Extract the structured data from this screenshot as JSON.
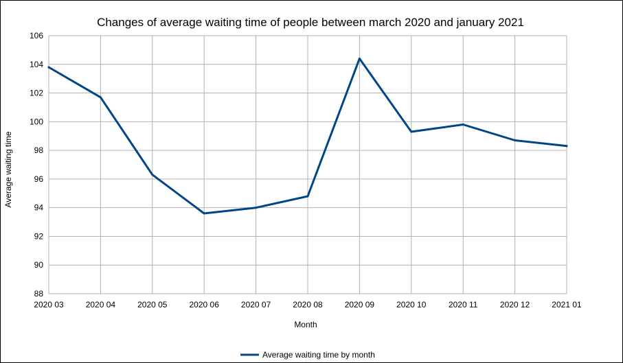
{
  "chart_data": {
    "type": "line",
    "title": "Changes of average waiting time of people between march 2020 and january 2021",
    "xlabel": "Month",
    "ylabel": "Average waiting time",
    "categories": [
      "2020 03",
      "2020 04",
      "2020 05",
      "2020 06",
      "2020 07",
      "2020 08",
      "2020 09",
      "2020 10",
      "2020 11",
      "2020 12",
      "2021 01"
    ],
    "series": [
      {
        "name": "Average waiting time by month",
        "values": [
          103.8,
          101.7,
          96.3,
          93.6,
          94.0,
          94.8,
          104.4,
          99.3,
          99.8,
          98.7,
          98.3
        ],
        "color": "#004586"
      }
    ],
    "ylim": [
      88,
      106
    ],
    "yticks": [
      88,
      90,
      92,
      94,
      96,
      98,
      100,
      102,
      104,
      106
    ],
    "grid": true,
    "legend_position": "bottom"
  }
}
